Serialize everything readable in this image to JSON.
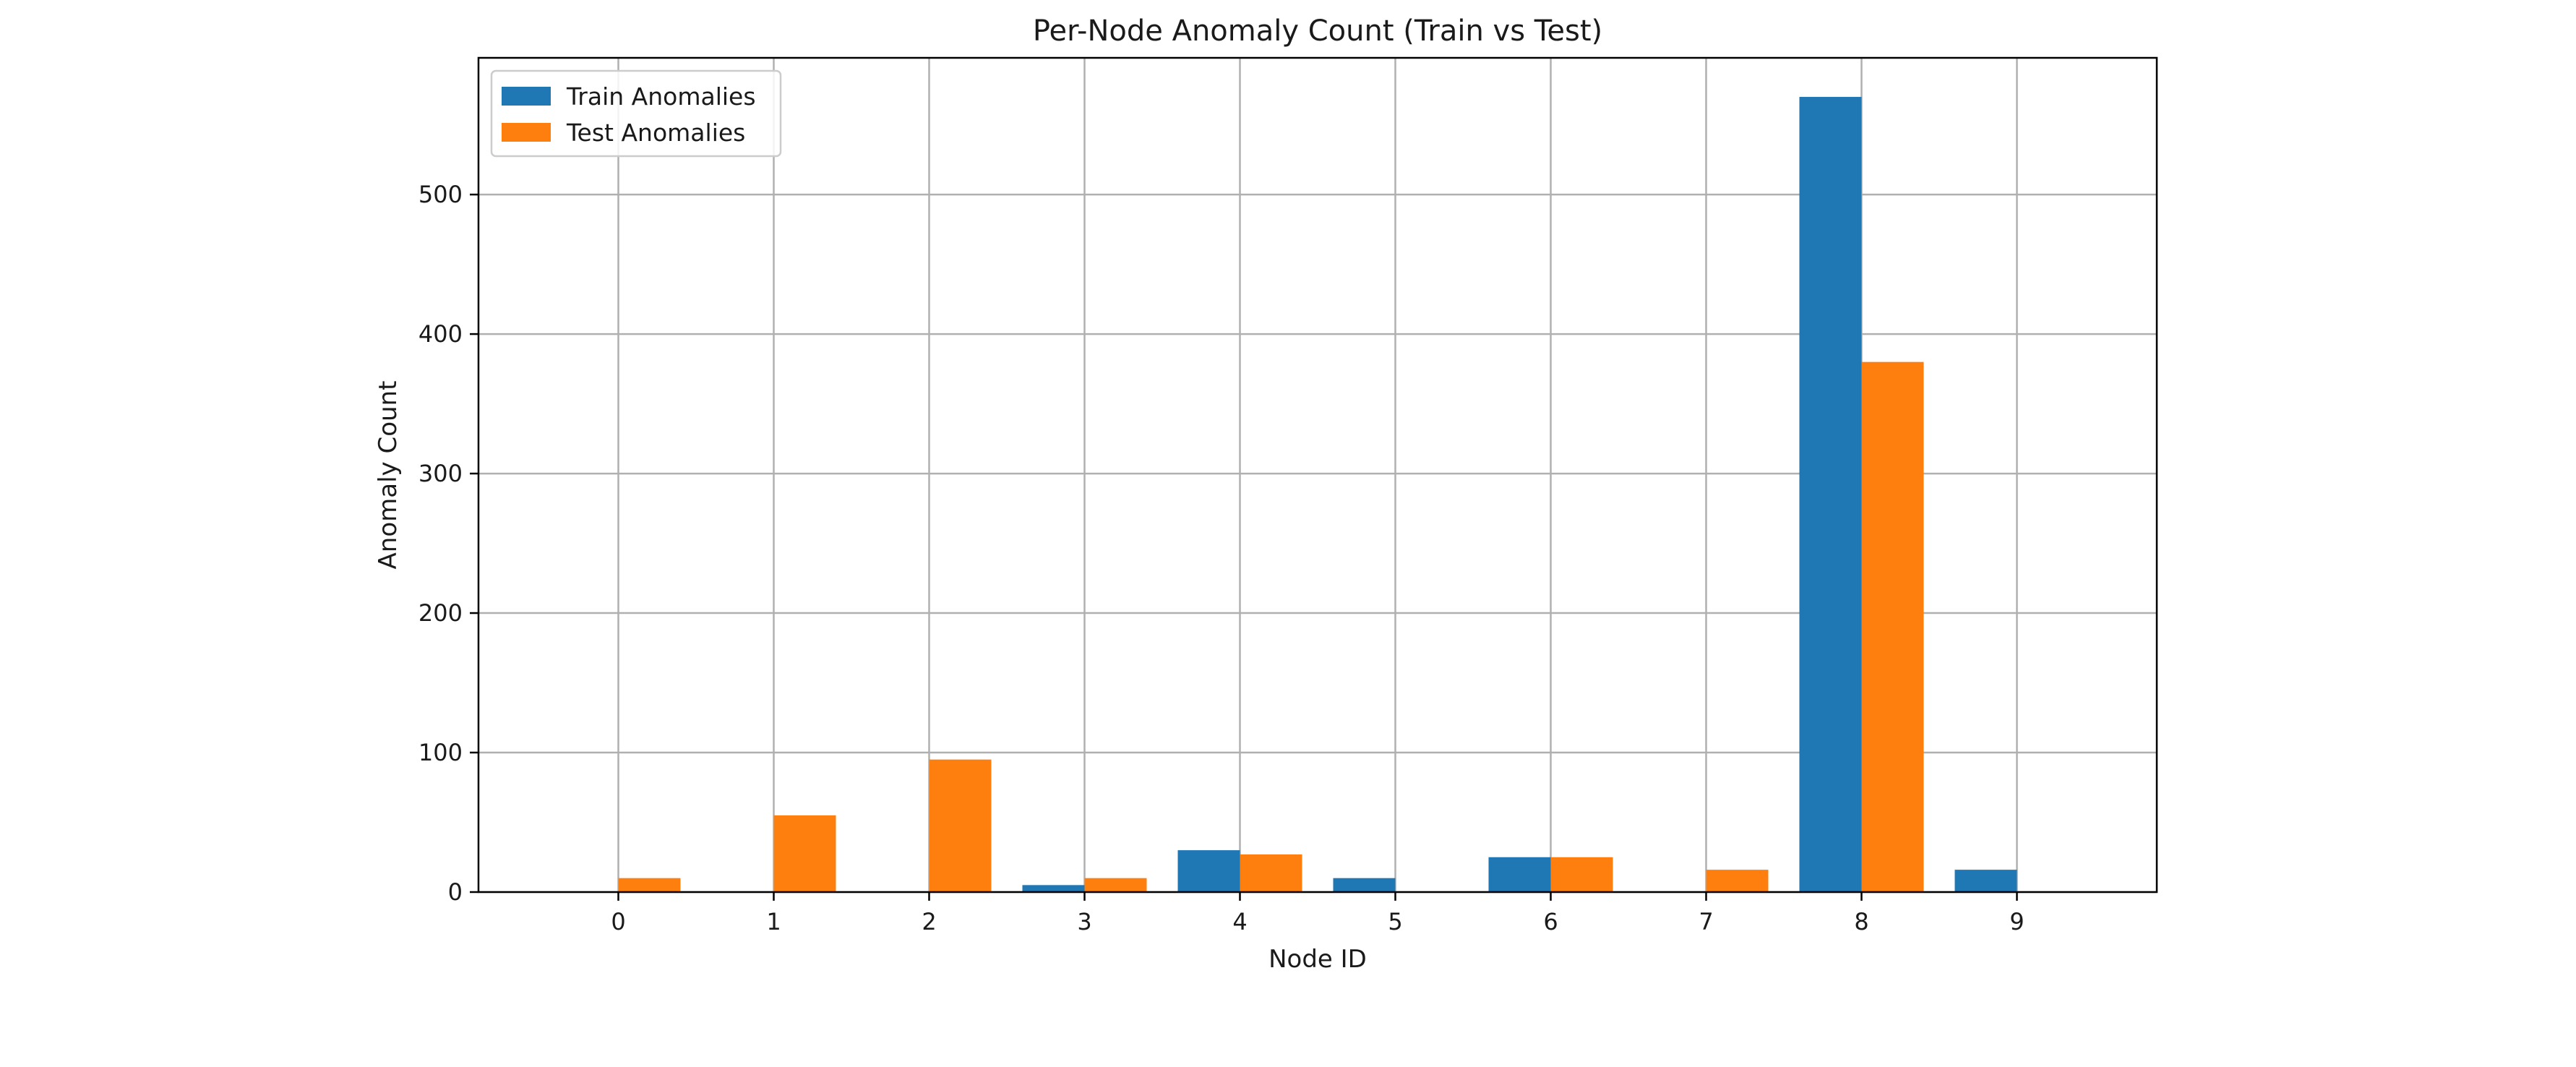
{
  "chart_data": {
    "type": "bar",
    "title": "Per-Node Anomaly Count (Train vs Test)",
    "xlabel": "Node ID",
    "ylabel": "Anomaly Count",
    "categories": [
      "0",
      "1",
      "2",
      "3",
      "4",
      "5",
      "6",
      "7",
      "8",
      "9"
    ],
    "series": [
      {
        "name": "Train Anomalies",
        "color": "#1f77b4",
        "values": [
          0,
          0,
          0,
          5,
          30,
          10,
          25,
          0,
          570,
          16
        ]
      },
      {
        "name": "Test Anomalies",
        "color": "#ff7f0e",
        "values": [
          10,
          55,
          95,
          10,
          27,
          0,
          25,
          16,
          380,
          0
        ]
      }
    ],
    "yticks": [
      0,
      100,
      200,
      300,
      400,
      500
    ],
    "ylim": [
      0,
      598
    ],
    "xlim": [
      -0.9,
      9.9
    ],
    "grid": true,
    "legend_position": "upper left"
  }
}
